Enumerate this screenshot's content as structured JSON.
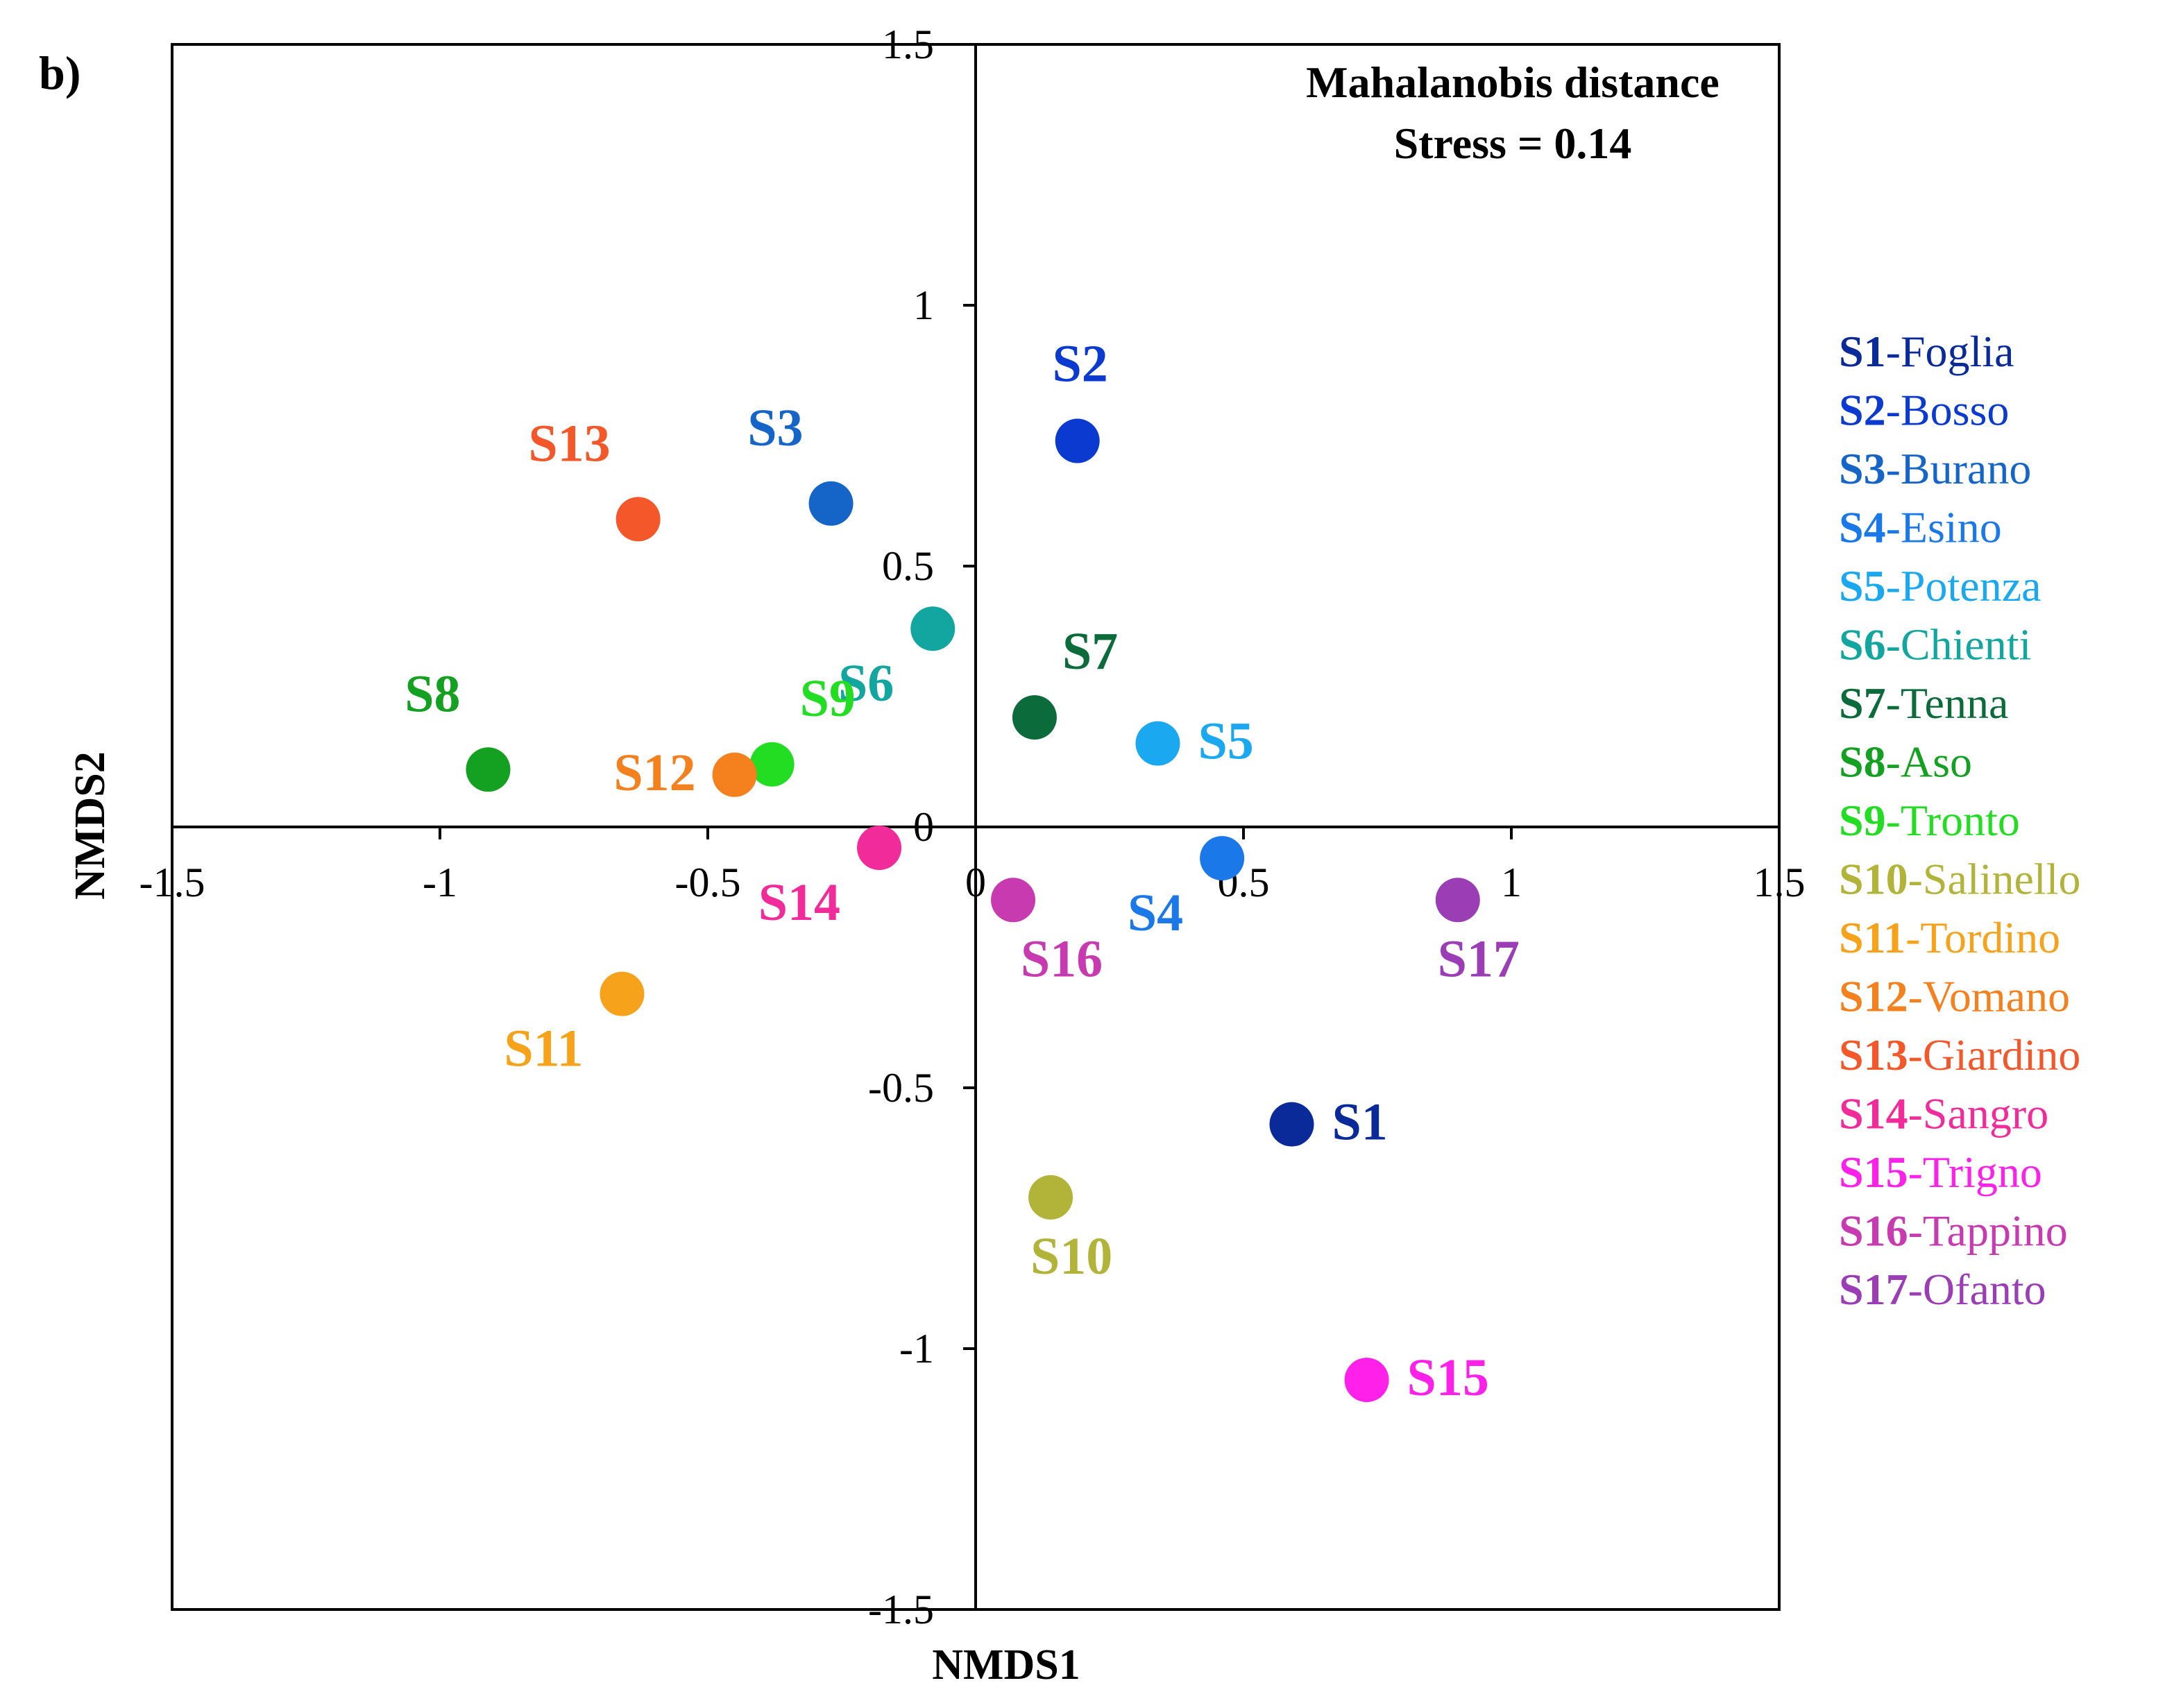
{
  "panel_label": "b)",
  "chart_data": {
    "type": "scatter",
    "title": "Mahalanobis distance",
    "subtitle": "Stress = 0.14",
    "xlabel": "NMDS1",
    "ylabel": "NMDS2",
    "xlim": [
      -1.5,
      1.5
    ],
    "ylim": [
      -1.5,
      1.5
    ],
    "x_ticks": [
      {
        "value": -1.5,
        "label": "-1.5"
      },
      {
        "value": -1,
        "label": "-1"
      },
      {
        "value": -0.5,
        "label": "-0.5"
      },
      {
        "value": 0,
        "label": "0"
      },
      {
        "value": 0.5,
        "label": "0.5"
      },
      {
        "value": 1,
        "label": "1"
      },
      {
        "value": 1.5,
        "label": "1.5"
      }
    ],
    "y_ticks": [
      {
        "value": 1.5,
        "label": "1.5"
      },
      {
        "value": 1,
        "label": "1"
      },
      {
        "value": 0.5,
        "label": "0.5"
      },
      {
        "value": 0,
        "label": "0"
      },
      {
        "value": -0.5,
        "label": "-0.5"
      },
      {
        "value": -1,
        "label": "-1"
      },
      {
        "value": -1.5,
        "label": "-1.5"
      }
    ],
    "points": [
      {
        "id": "S1",
        "x": 0.59,
        "y": -0.57,
        "color": "#0a2a9a",
        "label_pos": "right"
      },
      {
        "id": "S2",
        "x": 0.19,
        "y": 0.74,
        "color": "#0b3ad0",
        "label_pos": "above"
      },
      {
        "id": "S3",
        "x": -0.27,
        "y": 0.62,
        "color": "#1565c8",
        "label_pos": "above-left"
      },
      {
        "id": "S4",
        "x": 0.46,
        "y": -0.06,
        "color": "#1a78e8",
        "label_pos": "below-left"
      },
      {
        "id": "S5",
        "x": 0.34,
        "y": 0.16,
        "color": "#1aa8f0",
        "label_pos": "right"
      },
      {
        "id": "S6",
        "x": -0.08,
        "y": 0.38,
        "color": "#13a6a0",
        "label_pos": "below-left"
      },
      {
        "id": "S7",
        "x": 0.11,
        "y": 0.21,
        "color": "#0b6b3a",
        "label_pos": "above-right"
      },
      {
        "id": "S8",
        "x": -0.91,
        "y": 0.11,
        "color": "#14a020",
        "label_pos": "above-left"
      },
      {
        "id": "S9",
        "x": -0.38,
        "y": 0.12,
        "color": "#22dd22",
        "label_pos": "above-right"
      },
      {
        "id": "S10",
        "x": 0.14,
        "y": -0.71,
        "color": "#b2b43a",
        "label_pos": "below"
      },
      {
        "id": "S11",
        "x": -0.66,
        "y": -0.32,
        "color": "#f6a21a",
        "label_pos": "below-left"
      },
      {
        "id": "S12",
        "x": -0.45,
        "y": 0.1,
        "color": "#f4801e",
        "label_pos": "left"
      },
      {
        "id": "S13",
        "x": -0.63,
        "y": 0.59,
        "color": "#f4572a",
        "label_pos": "above-left"
      },
      {
        "id": "S14",
        "x": -0.18,
        "y": -0.04,
        "color": "#f22b9a",
        "label_pos": "below-left"
      },
      {
        "id": "S15",
        "x": 0.73,
        "y": -1.06,
        "color": "#ff20ea",
        "label_pos": "right"
      },
      {
        "id": "S16",
        "x": 0.07,
        "y": -0.14,
        "color": "#c73ab0",
        "label_pos": "below-right"
      },
      {
        "id": "S17",
        "x": 0.9,
        "y": -0.14,
        "color": "#9b3eb5",
        "label_pos": "below"
      }
    ],
    "legend": [
      {
        "id": "S1",
        "name": "-Foglia",
        "color": "#0a2a9a"
      },
      {
        "id": "S2",
        "name": "-Bosso",
        "color": "#0b3ad0"
      },
      {
        "id": "S3",
        "name": "-Burano",
        "color": "#1565c8"
      },
      {
        "id": "S4",
        "name": "-Esino",
        "color": "#1a78e8"
      },
      {
        "id": "S5",
        "name": "-Potenza",
        "color": "#1aa8f0"
      },
      {
        "id": "S6",
        "name": "-Chienti",
        "color": "#13a6a0"
      },
      {
        "id": "S7",
        "name": "-Tenna",
        "color": "#0b6b3a"
      },
      {
        "id": "S8",
        "name": "-Aso",
        "color": "#14a020"
      },
      {
        "id": "S9",
        "name": "-Tronto",
        "color": "#22dd22"
      },
      {
        "id": "S10",
        "name": "-Salinello",
        "color": "#b2b43a"
      },
      {
        "id": "S11",
        "name": "-Tordino",
        "color": "#f6a21a"
      },
      {
        "id": "S12",
        "name": "-Vomano",
        "color": "#f4801e"
      },
      {
        "id": "S13",
        "name": "-Giardino",
        "color": "#f4572a"
      },
      {
        "id": "S14",
        "name": "-Sangro",
        "color": "#f22b9a"
      },
      {
        "id": "S15",
        "name": "-Trigno",
        "color": "#ff20ea"
      },
      {
        "id": "S16",
        "name": "-Tappino",
        "color": "#c73ab0"
      },
      {
        "id": "S17",
        "name": "-Ofanto",
        "color": "#9b3eb5"
      }
    ],
    "legend_placement": "right",
    "grid": false
  }
}
